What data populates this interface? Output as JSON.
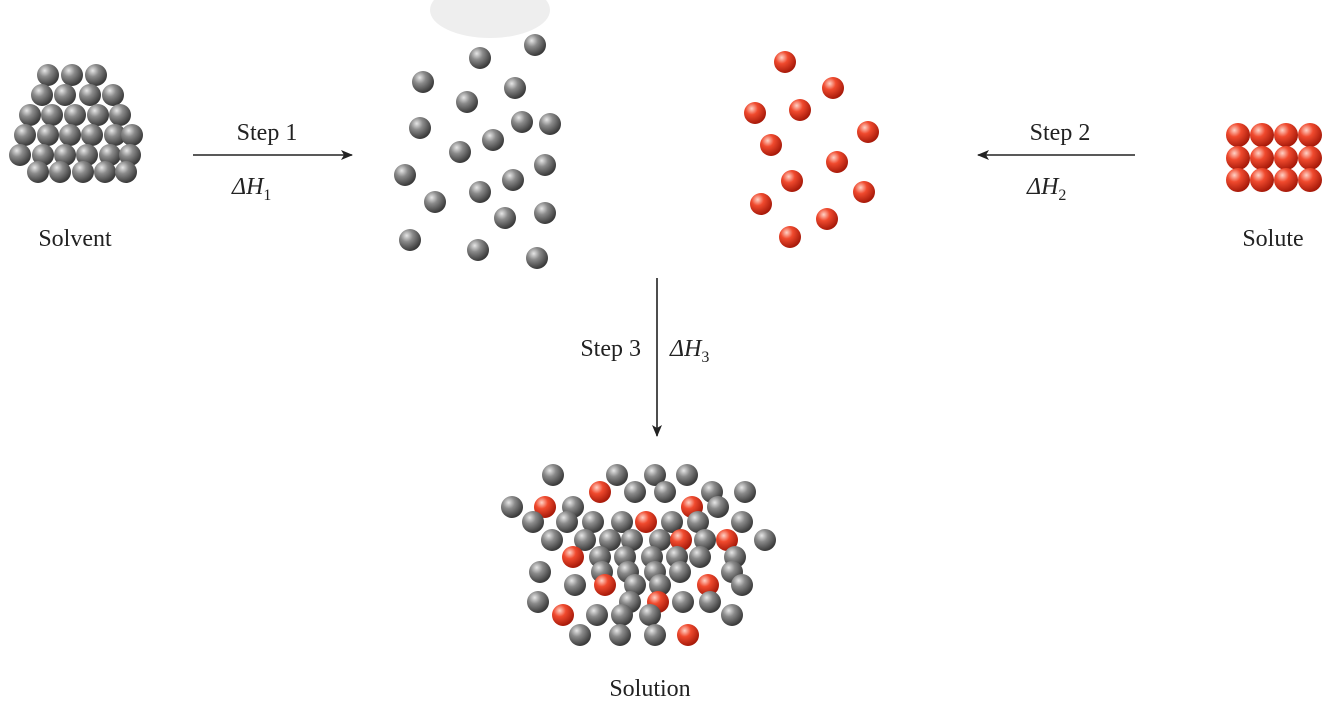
{
  "nodes": [
    {
      "label": "Solvent"
    },
    {
      "label": "Solute"
    },
    {
      "label": "Solution"
    }
  ],
  "steps": [
    {
      "label": "Step 1",
      "enthalpy": {
        "symbol": "ΔH",
        "subscript": "1"
      }
    },
    {
      "label": "Step 2",
      "enthalpy": {
        "symbol": "ΔH",
        "subscript": "2"
      }
    },
    {
      "label": "Step 3",
      "enthalpy": {
        "symbol": "ΔH",
        "subscript": "3"
      }
    }
  ]
}
